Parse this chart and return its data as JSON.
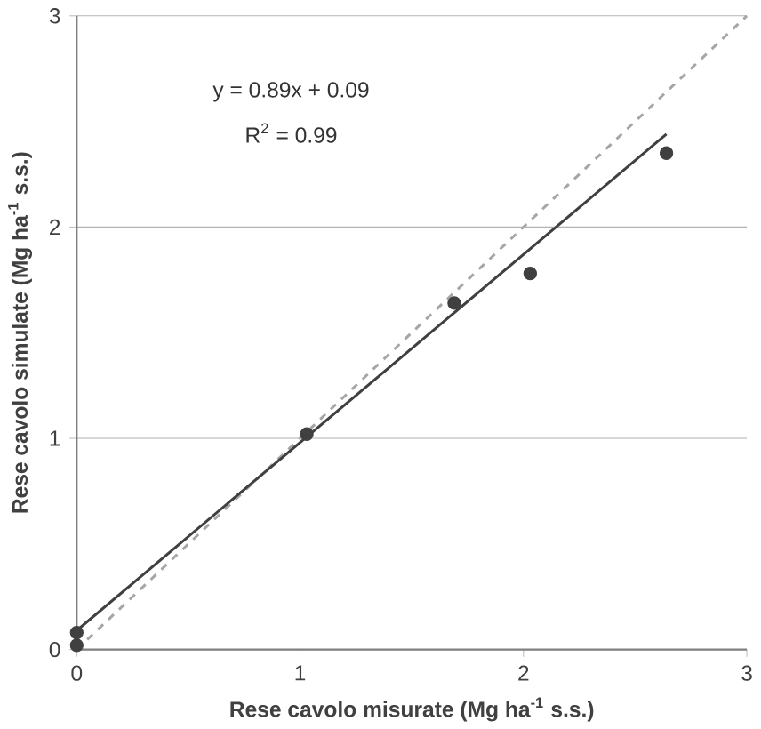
{
  "chart_data": {
    "type": "scatter",
    "xlabel": "Rese cavolo misurate (Mg ha$^{-1}$ s.s.)",
    "ylabel": "Rese cavolo simulate (Mg ha$^{-1}$ s.s.)",
    "xlim": [
      0,
      3
    ],
    "ylim": [
      0,
      3
    ],
    "xticks": [
      0,
      1,
      2,
      3
    ],
    "yticks": [
      0,
      1,
      2,
      3
    ],
    "grid": "y",
    "annotations": [
      "y = 0.89x + 0.09",
      "R$^{2}$ = 0.99"
    ],
    "series": [
      {
        "type": "line",
        "color": "#a6a6a6",
        "line_style": "dashed",
        "marker": "none",
        "x": [
          0,
          3
        ],
        "values": [
          0,
          3
        ]
      },
      {
        "type": "line",
        "color": "#404040",
        "line_style": "solid",
        "marker": "none",
        "x": [
          0,
          2.64
        ],
        "values": [
          0.09,
          2.44
        ]
      },
      {
        "color": "#404040",
        "marker": "circle",
        "x": [
          0,
          0,
          1.03,
          1.69,
          2.03,
          2.64
        ],
        "values": [
          0.02,
          0.08,
          1.02,
          1.64,
          1.78,
          2.35
        ]
      }
    ]
  }
}
